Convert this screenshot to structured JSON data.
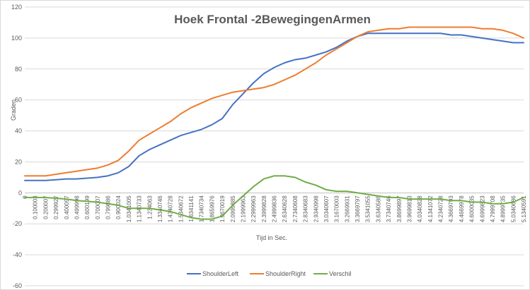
{
  "chart_data": {
    "type": "line",
    "title": "Hoek Frontal -2BewegingenArmen",
    "xlabel": "Tijd in Sec.",
    "ylabel": "Graden",
    "ylim": [
      -60,
      120
    ],
    "yticks": [
      -60,
      -40,
      -20,
      0,
      20,
      40,
      60,
      80,
      100,
      120
    ],
    "grid": true,
    "legend_position": "bottom",
    "xtick_labels": [
      "0",
      "0.100003",
      "0.200007",
      "0.299927",
      "0.400097",
      "0.499998",
      "0.600199",
      "0.700007",
      "0.799886",
      "0.900024",
      "1.0341005",
      "1.1340733",
      "1.234063",
      "1.3340746",
      "1.4340728",
      "1.5340672",
      "1.6341141",
      "1.7340734",
      "1.8659976",
      "1.9670019",
      "2.0999885",
      "2.1999963",
      "2.2999963",
      "2.3999828",
      "2.4999836",
      "2.6340628",
      "2.7340608",
      "2.8340683",
      "2.9340998",
      "3.0340607",
      "3.1670003",
      "3.2669931",
      "3.3669797",
      "3.5341055",
      "3.6340586",
      "3.7340746",
      "3.8699897",
      "3.9699813",
      "4.0340828",
      "4.1341072",
      "4.2340728",
      "4.3669793",
      "4.4669978",
      "4.6000035",
      "4.6999823",
      "4.7999708",
      "4.8999735",
      "5.0340686",
      "5.1340591"
    ],
    "x": [
      0,
      1,
      2,
      3,
      4,
      5,
      6,
      7,
      8,
      9,
      10,
      11,
      12,
      13,
      14,
      15,
      16,
      17,
      18,
      19,
      20,
      21,
      22,
      23,
      24,
      25,
      26,
      27,
      28,
      29,
      30,
      31,
      32,
      33,
      34,
      35,
      36,
      37,
      38,
      39,
      40,
      41,
      42,
      43,
      44,
      45,
      46,
      47,
      48
    ],
    "series": [
      {
        "name": "ShoulderLeft",
        "color": "#4472c4",
        "values": [
          8,
          8,
          8,
          8.5,
          9,
          9,
          9.5,
          10,
          11,
          13,
          17,
          24,
          28,
          31,
          34,
          37,
          39,
          41,
          44,
          48,
          57,
          64,
          71,
          77,
          81,
          84,
          86,
          87,
          89,
          91,
          94,
          98,
          101,
          103,
          103,
          103,
          103,
          103,
          103,
          103,
          103,
          102,
          102,
          101,
          100,
          99,
          98,
          97,
          97
        ]
      },
      {
        "name": "ShoulderRight",
        "color": "#ed7d31",
        "values": [
          11,
          11,
          11,
          12,
          13,
          14,
          15,
          16,
          18,
          21,
          27,
          34,
          38,
          42,
          46,
          51,
          55,
          58,
          61,
          63,
          65,
          66,
          67,
          68,
          70,
          73,
          76,
          80,
          84,
          89,
          93,
          97,
          101,
          104,
          105,
          106,
          106,
          107,
          107,
          107,
          107,
          107,
          107,
          107,
          106,
          106,
          105,
          103,
          100
        ]
      },
      {
        "name": "Verschil",
        "color": "#70ad47",
        "values": [
          -3,
          -3,
          -3,
          -3.5,
          -4,
          -5,
          -5.5,
          -6,
          -7,
          -8,
          -10,
          -10,
          -10,
          -11,
          -12,
          -14,
          -16,
          -17,
          -17,
          -15,
          -8,
          -2,
          4,
          9,
          11,
          11,
          10,
          7,
          5,
          2,
          1,
          1,
          0,
          -1,
          -2,
          -3,
          -3,
          -4,
          -4,
          -4,
          -4,
          -5,
          -5,
          -6,
          -6,
          -7,
          -7,
          -6,
          -3
        ]
      }
    ]
  }
}
